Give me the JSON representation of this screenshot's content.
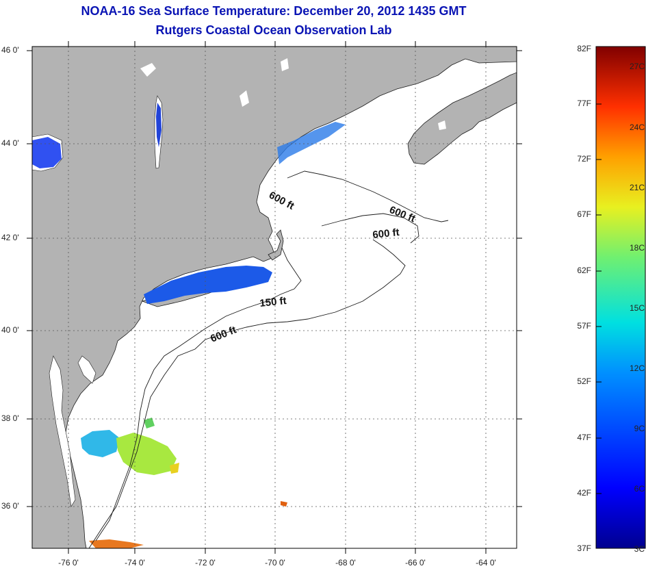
{
  "title": {
    "line1": "NOAA-16 Sea Surface Temperature:  December 20, 2012 1435 GMT",
    "line2": "Rutgers Coastal Ocean Observation Lab"
  },
  "map": {
    "lat_labels": [
      "46 0'",
      "44 0'",
      "42 0'",
      "40 0'",
      "38 0'",
      "36 0'"
    ],
    "lon_labels": [
      "-76 0'",
      "-74 0'",
      "-72 0'",
      "-70 0'",
      "-68 0'",
      "-66 0'",
      "-64 0'"
    ],
    "contour_labels": [
      "600 ft",
      "600 ft",
      "600 ft",
      "150 ft",
      "600 ft"
    ],
    "colors": {
      "land": "#b3b3b3",
      "water": "#ffffff"
    }
  },
  "colorbar": {
    "fahrenheit_labels": [
      "82F",
      "77F",
      "72F",
      "67F",
      "62F",
      "57F",
      "52F",
      "47F",
      "42F",
      "37F"
    ],
    "celsius_labels": [
      "27C",
      "24C",
      "21C",
      "18C",
      "15C",
      "12C",
      "9C",
      "6C",
      "3C"
    ],
    "range_f": [
      37,
      82
    ],
    "range_c": [
      3,
      27.8
    ]
  }
}
